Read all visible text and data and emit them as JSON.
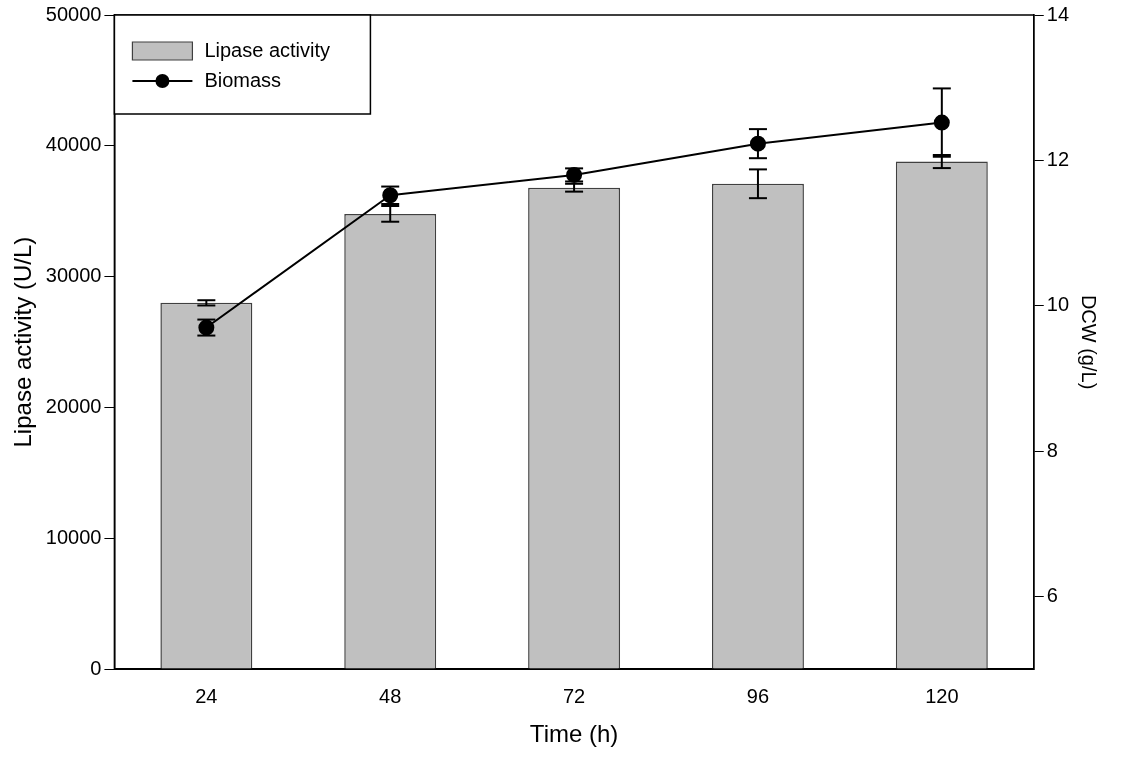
{
  "chart_data": {
    "type": "bar",
    "xlabel": "Time (h)",
    "ylabel": "Lipase activity (U/L)",
    "y2label": "DCW (g/L)",
    "categories": [
      "24",
      "48",
      "72",
      "96",
      "120"
    ],
    "series": [
      {
        "name": "Lipase activity",
        "type": "bar",
        "color": "#c0c0c0",
        "values": [
          28000,
          34800,
          36800,
          37100,
          38800
        ],
        "errors": [
          200,
          600,
          300,
          1100,
          500
        ]
      },
      {
        "name": "Biomass",
        "type": "line",
        "axis": "y2",
        "color": "#000000",
        "marker": "circle",
        "values": [
          9.7,
          11.52,
          11.8,
          12.23,
          12.52
        ],
        "errors": [
          0.11,
          0.12,
          0.09,
          0.2,
          0.47
        ]
      }
    ],
    "ylim": [
      0,
      50000
    ],
    "yticks": [
      0,
      10000,
      20000,
      30000,
      40000,
      50000
    ],
    "y2lim": [
      5,
      14
    ],
    "y2ticks": [
      6,
      8,
      10,
      12,
      14
    ],
    "grid": false,
    "legend": "top left"
  }
}
